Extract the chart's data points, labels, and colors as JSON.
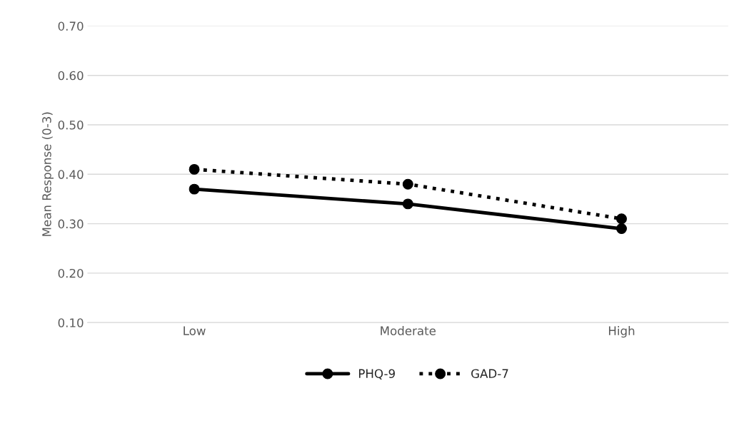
{
  "chart_data": {
    "type": "line",
    "ylabel": "Mean Response (0-3)",
    "categories": [
      "Low",
      "Moderate",
      "High"
    ],
    "series": [
      {
        "name": "PHQ-9",
        "color": "#000000",
        "values": [
          0.37,
          0.34,
          0.29
        ],
        "line_style": "solid"
      },
      {
        "name": "GAD-7",
        "color": "#000000",
        "values": [
          0.41,
          0.38,
          0.31
        ],
        "line_style": "dotted"
      }
    ],
    "ylim": [
      0.1,
      0.7
    ],
    "yticks": [
      {
        "value": 0.1,
        "label": "0.10"
      },
      {
        "value": 0.2,
        "label": "0.20"
      },
      {
        "value": 0.3,
        "label": "0.30"
      },
      {
        "value": 0.4,
        "label": "0.40"
      },
      {
        "value": 0.5,
        "label": "0.50"
      },
      {
        "value": 0.6,
        "label": "0.60"
      },
      {
        "value": 0.7,
        "label": "0.70"
      }
    ],
    "grid": "y",
    "legend": "bottom",
    "marker": "circle"
  }
}
